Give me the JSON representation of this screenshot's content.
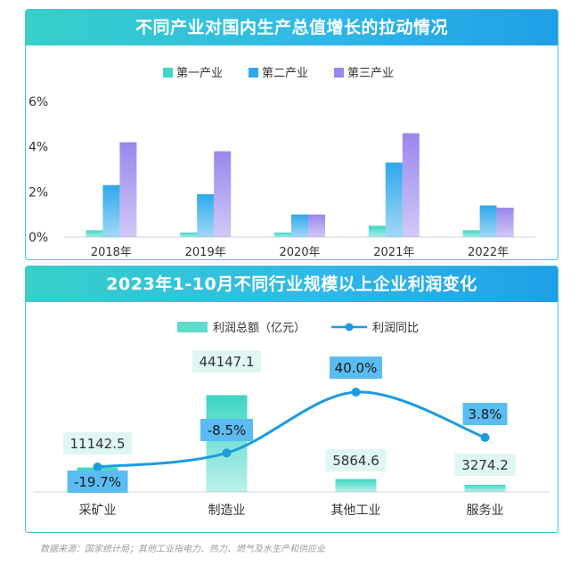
{
  "chart1": {
    "title": "不同产业对国内生产总值增长的拉动情况",
    "type": "bar",
    "categories": [
      "2018年",
      "2019年",
      "2020年",
      "2021年",
      "2022年"
    ],
    "series": [
      {
        "name": "第一产业",
        "color": "#3ed6c4",
        "values": [
          0.3,
          0.2,
          0.2,
          0.5,
          0.3
        ]
      },
      {
        "name": "第二产业",
        "color": "#2ea8ec",
        "values": [
          2.3,
          1.9,
          1.0,
          3.3,
          1.4
        ]
      },
      {
        "name": "第三产业",
        "color": "#9a86ec",
        "values": [
          4.2,
          3.8,
          1.0,
          4.6,
          1.3
        ]
      }
    ],
    "yticks": [
      "0%",
      "2%",
      "4%",
      "6%"
    ],
    "ylim": [
      0,
      6
    ]
  },
  "chart2": {
    "title": "2023年1-10月不同行业规模以上企业利润变化",
    "type": "bar+line",
    "categories": [
      "采矿业",
      "制造业",
      "其他工业",
      "服务业"
    ],
    "bar_series": {
      "name": "利润总额（亿元）",
      "color": "#3ed6c4",
      "values": [
        11142.5,
        44147.1,
        5864.6,
        3274.2
      ],
      "labels": [
        "11142.5",
        "44147.1",
        "5864.6",
        "3274.2"
      ]
    },
    "line_series": {
      "name": "利润同比",
      "color": "#1c9be0",
      "values": [
        -19.7,
        -8.5,
        40.0,
        3.8
      ],
      "labels": [
        "-19.7%",
        "-8.5%",
        "40.0%",
        "3.8%"
      ]
    }
  },
  "chart_data": [
    {
      "type": "bar",
      "title": "不同产业对国内生产总值增长的拉动情况",
      "categories": [
        "2018年",
        "2019年",
        "2020年",
        "2021年",
        "2022年"
      ],
      "series": [
        {
          "name": "第一产业",
          "values": [
            0.3,
            0.2,
            0.2,
            0.5,
            0.3
          ]
        },
        {
          "name": "第二产业",
          "values": [
            2.3,
            1.9,
            1.0,
            3.3,
            1.4
          ]
        },
        {
          "name": "第三产业",
          "values": [
            4.2,
            3.8,
            1.0,
            4.6,
            1.3
          ]
        }
      ],
      "ylim": [
        0,
        6
      ],
      "yunit": "%",
      "legend": "top-center"
    },
    {
      "type": "bar",
      "title": "2023年1-10月不同行业规模以上企业利润变化",
      "categories": [
        "采矿业",
        "制造业",
        "其他工业",
        "服务业"
      ],
      "series": [
        {
          "name": "利润总额（亿元）",
          "type": "bar",
          "values": [
            11142.5,
            44147.1,
            5864.6,
            3274.2
          ]
        },
        {
          "name": "利润同比",
          "type": "line",
          "values": [
            -19.7,
            -8.5,
            40.0,
            3.8
          ],
          "unit": "%"
        }
      ],
      "legend": "top-center"
    }
  ],
  "source": "数据来源：国家统计局；其他工业指电力、热力、燃气及水生产和供应业"
}
